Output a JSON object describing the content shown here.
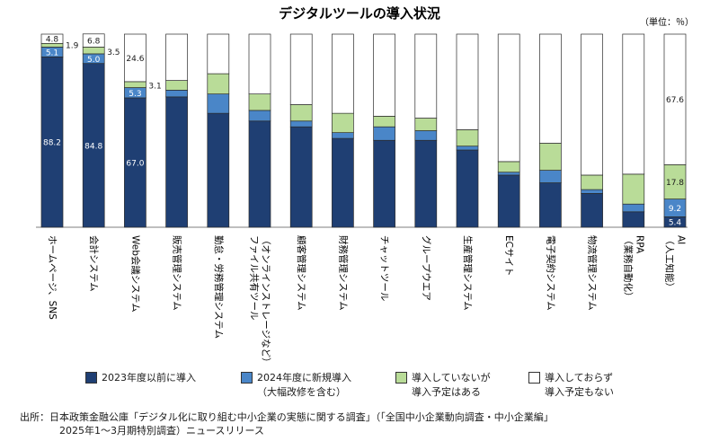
{
  "chart_data": {
    "type": "bar",
    "stacked": true,
    "orientation": "vertical",
    "title": "デジタルツールの導入状況",
    "unit_label": "（単位：％）",
    "categories": [
      "ホームページ、SNS",
      "会計システム",
      "Web会議システム",
      "販売管理システム",
      "勤怠・労務管理システム",
      "ファイル共有ツール（オンラインストレージなど）",
      "顧客管理システム",
      "財務管理システム",
      "チャットツール",
      "グループウエア",
      "生産管理システム",
      "ECサイト",
      "電子契約システム",
      "物流管理システム",
      "RPA（業務自動化）",
      "AI（人工知能）"
    ],
    "category_lines": [
      [
        "ホームページ、SNS"
      ],
      [
        "会計システム"
      ],
      [
        "Web会議システム"
      ],
      [
        "販売管理システム"
      ],
      [
        "勤怠・労務管理システム"
      ],
      [
        "（オンラインストレージなど）",
        "ファイル共有ツール"
      ],
      [
        "顧客管理システム"
      ],
      [
        "財務管理システム"
      ],
      [
        "チャットツール"
      ],
      [
        "グループウエア"
      ],
      [
        "生産管理システム"
      ],
      [
        "ECサイト"
      ],
      [
        "電子契約システム"
      ],
      [
        "物流管理システム"
      ],
      [
        "RPA",
        "（業務自動化）"
      ],
      [
        "AI",
        "（人工知能）"
      ]
    ],
    "series": [
      {
        "name": "2023年度以前に導入",
        "color": "#1f3f73",
        "values": [
          88.2,
          84.8,
          67.0,
          67.5,
          59.0,
          55.0,
          52.0,
          46.0,
          45.0,
          45.0,
          40.0,
          27.0,
          23.0,
          17.5,
          8.0,
          5.4
        ]
      },
      {
        "name": "2024年度に新規導入（大幅改修を含む）",
        "color": "#4a86c8",
        "values": [
          5.1,
          5.0,
          5.3,
          3.5,
          10.0,
          5.5,
          3.0,
          3.0,
          7.0,
          5.0,
          2.0,
          1.5,
          6.5,
          2.0,
          4.0,
          9.2
        ]
      },
      {
        "name": "導入していないが導入予定はある",
        "color": "#b9dc98",
        "values": [
          1.9,
          3.5,
          3.1,
          5.0,
          10.5,
          8.5,
          8.5,
          10.0,
          5.5,
          6.5,
          8.5,
          5.5,
          14.0,
          7.5,
          15.5,
          17.8
        ]
      },
      {
        "name": "導入しておらず導入予定もない",
        "color": "#ffffff",
        "values": [
          4.8,
          6.8,
          24.6,
          24.0,
          20.5,
          31.0,
          36.5,
          41.0,
          42.5,
          43.5,
          49.5,
          66.0,
          56.5,
          73.0,
          72.5,
          67.6
        ]
      }
    ],
    "data_labels": [
      [
        {
          "series": 0,
          "text": "88.2",
          "inside": true
        },
        {
          "series": 1,
          "text": "5.1",
          "inside": true
        },
        {
          "series": 2,
          "text": "1.9",
          "inside": false
        },
        {
          "series": 3,
          "text": "4.8",
          "inside": true
        }
      ],
      [
        {
          "series": 0,
          "text": "84.8",
          "inside": true
        },
        {
          "series": 1,
          "text": "5.0",
          "inside": true
        },
        {
          "series": 2,
          "text": "3.5",
          "inside": false
        },
        {
          "series": 3,
          "text": "6.8",
          "inside": true
        }
      ],
      [
        {
          "series": 0,
          "text": "67.0",
          "inside": true
        },
        {
          "series": 1,
          "text": "5.3",
          "inside": true
        },
        {
          "series": 2,
          "text": "3.1",
          "inside": false
        },
        {
          "series": 3,
          "text": "24.6",
          "inside": true
        }
      ],
      [],
      [],
      [],
      [],
      [],
      [],
      [],
      [],
      [],
      [],
      [],
      [],
      [
        {
          "series": 0,
          "text": "5.4",
          "inside": true
        },
        {
          "series": 1,
          "text": "9.2",
          "inside": true
        },
        {
          "series": 2,
          "text": "17.8",
          "inside": true
        },
        {
          "series": 3,
          "text": "67.6",
          "inside": true
        }
      ]
    ],
    "ylim": [
      0,
      100
    ],
    "grid": false,
    "legend": "bottom"
  },
  "legend": {
    "items": [
      {
        "line1": "2023年度以前に導入",
        "line2": ""
      },
      {
        "line1": "2024年度に新規導入",
        "line2": "（大幅改修を含む）"
      },
      {
        "line1": "導入していないが",
        "line2": "導入予定はある"
      },
      {
        "line1": "導入しておらず",
        "line2": "導入予定もない"
      }
    ]
  },
  "source": {
    "line1": "出所：日本政策金融公庫「デジタル化に取り組む中小企業の実態に関する調査」（「全国中小企業動向調査・中小企業編」",
    "line2": "2025年1～3月期特別調査）ニュースリリース"
  }
}
